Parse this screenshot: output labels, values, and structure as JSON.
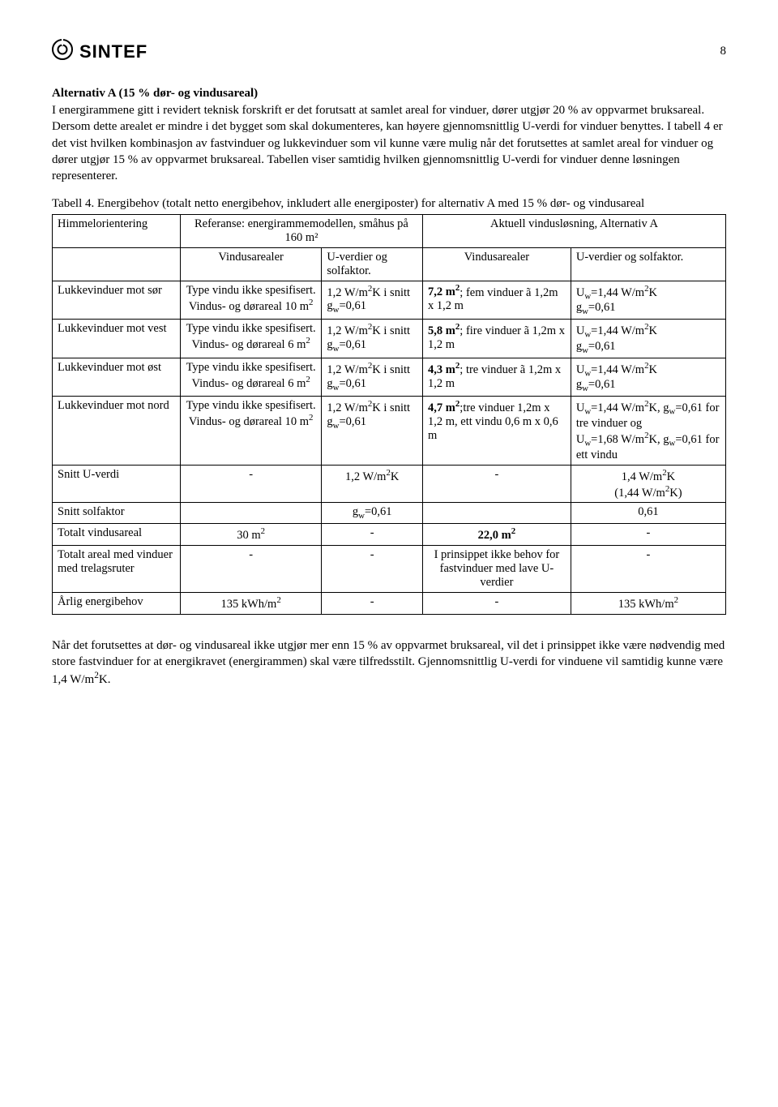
{
  "page_number": "8",
  "logo_text": "SINTEF",
  "heading": "Alternativ A (15 % dør- og vindusareal)",
  "para1": "I energirammene gitt i revidert teknisk forskrift er det forutsatt at samlet areal for vinduer, dører utgjør 20 % av oppvarmet bruksareal. Dersom dette arealet er mindre i det bygget som skal dokumenteres, kan høyere gjennomsnittlig U-verdi for vinduer benyttes. I tabell 4 er det vist hvilken kombinasjon av fastvinduer og lukkevinduer som vil kunne være mulig når det forutsettes at samlet areal for vinduer og dører utgjør 15 % av oppvarmet bruksareal. Tabellen viser samtidig hvilken gjennomsnittlig U-verdi for vinduer denne løsningen representerer.",
  "caption": "Tabell 4. Energibehov (totalt netto energibehov, inkludert alle energiposter) for alternativ A med 15 % dør- og vindusareal",
  "head_r1_c0": "Himmelorientering",
  "head_r1_c12": "Referanse: energirammemodellen, småhus på 160 m²",
  "head_r1_c34": "Aktuell vindusløsning, Alternativ A",
  "head_r2_c1": "Vindusarealer",
  "head_r2_c2": "U-verdier og solfaktor.",
  "head_r2_c3": "Vindusarealer",
  "head_r2_c4": "U-verdier og solfaktor.",
  "rows": [
    {
      "c0": "Lukkevinduer mot sør",
      "c1": "Type vindu ikke spesifisert.\nVindus- og dørareal 10 m²",
      "c2": "1,2 W/m²K i snitt\ngw=0,61",
      "c3": "7,2 m²; fem vinduer ã 1,2m x 1,2 m",
      "c4": "Uw=1,44 W/m²K\ngw=0,61"
    },
    {
      "c0": "Lukkevinduer mot vest",
      "c1": "Type vindu ikke spesifisert.\nVindus- og dørareal 6 m²",
      "c2": "1,2 W/m²K i snitt\ngw=0,61",
      "c3": "5,8 m²; fire vinduer ã 1,2m x 1,2 m",
      "c4": "Uw=1,44 W/m²K\ngw=0,61"
    },
    {
      "c0": "Lukkevinduer mot øst",
      "c1": "Type vindu ikke spesifisert.\nVindus- og dørareal 6 m²",
      "c2": "1,2 W/m²K i snitt\ngw=0,61",
      "c3": "4,3 m²; tre vinduer ã 1,2m x 1,2 m",
      "c4": "Uw=1,44 W/m²K\ngw=0,61"
    },
    {
      "c0": "Lukkevinduer mot nord",
      "c1": "Type vindu ikke spesifisert.\nVindus- og dørareal 10 m²",
      "c2": "1,2 W/m²K i snitt\ngw=0,61",
      "c3": "4,7 m²;tre vinduer 1,2m x 1,2 m, ett vindu 0,6 m x 0,6 m",
      "c4": "Uw=1,44 W/m²K, gw=0,61 for tre vinduer og\nUw=1,68 W/m²K, gw=0,61 for ett vindu"
    }
  ],
  "snitt_u_label": "Snitt U-verdi",
  "snitt_u_c1": "-",
  "snitt_u_c2": "1,2 W/m²K",
  "snitt_u_c3": "-",
  "snitt_u_c4": "1,4 W/m²K\n(1,44 W/m²K)",
  "snitt_sol_label": "Snitt solfaktor",
  "snitt_sol_c2": "gw=0,61",
  "snitt_sol_c4": "0,61",
  "tot_vindu_label": "Totalt vindusareal",
  "tot_vindu_c1": "30 m²",
  "tot_vindu_c2": "-",
  "tot_vindu_c3": "22,0 m²",
  "tot_vindu_c4": "-",
  "tot_trelag_label": "Totalt areal med vinduer med trelagsruter",
  "tot_trelag_c1": "-",
  "tot_trelag_c2": "-",
  "tot_trelag_c3": "I prinsippet ikke behov for fastvinduer med lave U-verdier",
  "tot_trelag_c4": "-",
  "energi_label": "Årlig energibehov",
  "energi_c1": "135 kWh/m²",
  "energi_c2": "-",
  "energi_c3": "-",
  "energi_c4": "135 kWh/m²",
  "footer": "Når det forutsettes at dør- og vindusareal ikke utgjør mer enn 15 % av oppvarmet bruksareal, vil det i prinsippet ikke være nødvendig med store fastvinduer for at energikravet (energirammen) skal være tilfredsstilt. Gjennomsnittlig U-verdi for vinduene vil samtidig kunne være 1,4 W/m²K."
}
